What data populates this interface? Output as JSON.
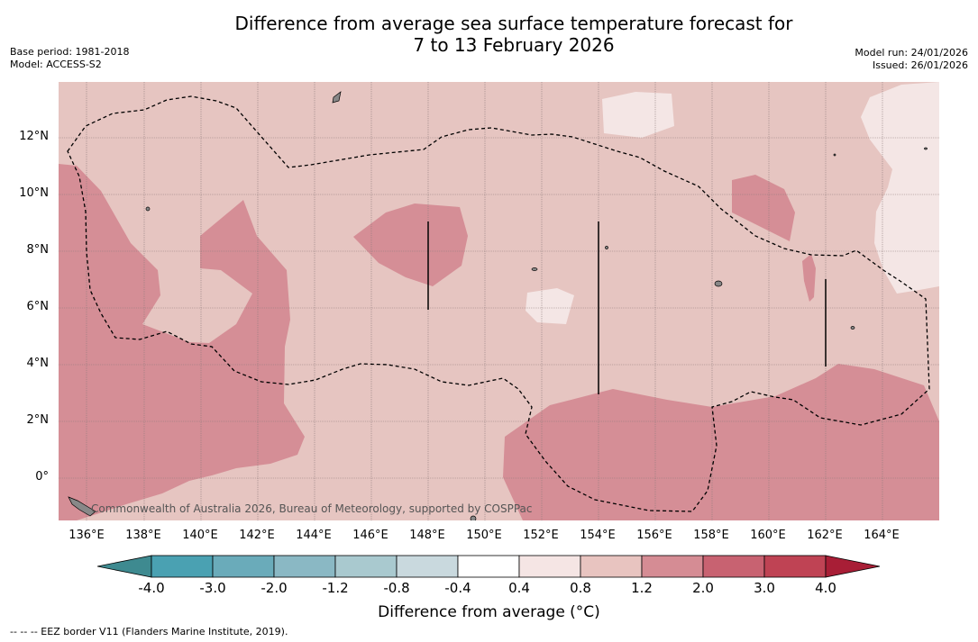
{
  "title_line1": "Difference from average sea surface temperature forecast for",
  "title_line2": "7 to 13 February 2026",
  "meta_left": {
    "base_period": "Base period: 1981-2018",
    "model": "Model: ACCESS-S2"
  },
  "meta_right": {
    "model_run": "Model run: 24/01/2026",
    "issued": "Issued: 26/01/2026"
  },
  "x_ticks": [
    "136°E",
    "138°E",
    "140°E",
    "142°E",
    "144°E",
    "146°E",
    "148°E",
    "150°E",
    "152°E",
    "154°E",
    "156°E",
    "158°E",
    "160°E",
    "162°E",
    "164°E"
  ],
  "y_ticks": [
    "12°N",
    "10°N",
    "8°N",
    "6°N",
    "4°N",
    "2°N",
    "0°"
  ],
  "attribution": "Commonwealth of Australia 2026, Bureau of Meteorology, supported by COSPPac",
  "colorbar": {
    "labels": [
      "-4.0",
      "-3.0",
      "-2.0",
      "-1.2",
      "-0.8",
      "-0.4",
      "0.4",
      "0.8",
      "1.2",
      "2.0",
      "3.0",
      "4.0"
    ],
    "colors": [
      "#3e8a90",
      "#4aa1b2",
      "#6aabba",
      "#8ab8c4",
      "#a9c9cf",
      "#c9d9de",
      "#ffffff",
      "#f5e5e4",
      "#e8c4c0",
      "#d58c94",
      "#c86271",
      "#bf4354",
      "#a81e36"
    ],
    "title": "Difference from average (°C)"
  },
  "map_colors": {
    "band_08_12": "#e6c5c1",
    "band_12_20": "#d58e96",
    "band_04_08": "#f4e6e5"
  },
  "footnote": "--  --  -- EEZ border V11 (Flanders Marine Institute, 2019)."
}
